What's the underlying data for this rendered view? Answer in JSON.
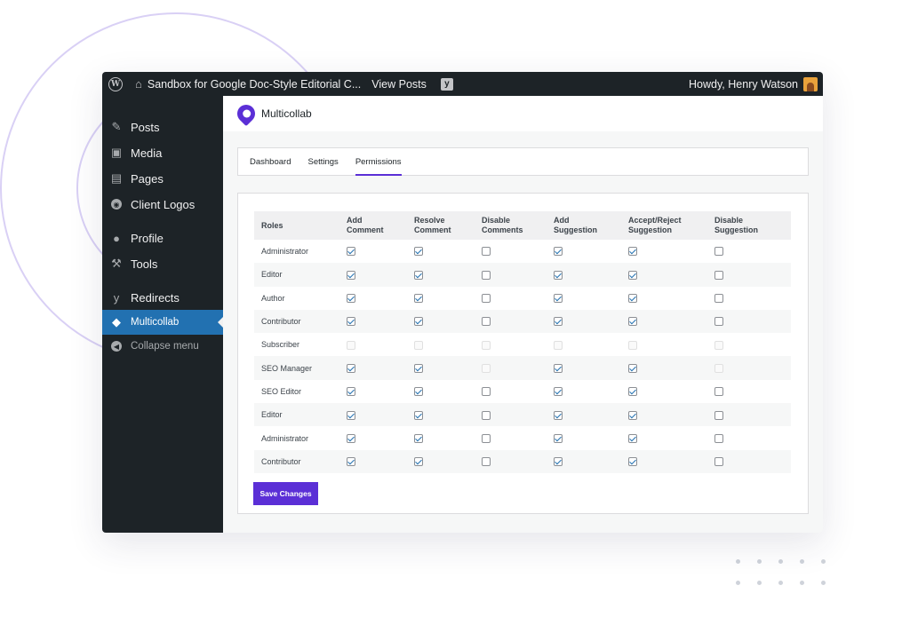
{
  "adminbar": {
    "site_title": "Sandbox for Google Doc-Style Editorial C...",
    "view_posts": "View Posts",
    "howdy": "Howdy, Henry Watson"
  },
  "sidebar": {
    "items": [
      {
        "label": "Posts",
        "icon": "pin-icon"
      },
      {
        "label": "Media",
        "icon": "media-icon"
      },
      {
        "label": "Pages",
        "icon": "pages-icon"
      },
      {
        "label": "Client Logos",
        "icon": "client-logos-icon"
      },
      {
        "label": "Profile",
        "icon": "profile-icon"
      },
      {
        "label": "Tools",
        "icon": "wrench-icon"
      },
      {
        "label": "Redirects",
        "icon": "yoast-icon"
      },
      {
        "label": "Multicollab",
        "icon": "multicollab-icon",
        "active": true
      },
      {
        "label": "Collapse menu",
        "icon": "collapse-icon"
      }
    ]
  },
  "plugin": {
    "name": "Multicollab"
  },
  "tabs": [
    {
      "label": "Dashboard",
      "active": false
    },
    {
      "label": "Settings",
      "active": false
    },
    {
      "label": "Permissions",
      "active": true
    }
  ],
  "permissions": {
    "columns": [
      "Roles",
      "Add Comment",
      "Resolve Comment",
      "Disable Comments",
      "Add Suggestion",
      "Accept/Reject Suggestion",
      "Disable Suggestion"
    ],
    "column_lines": [
      [
        "Roles"
      ],
      [
        "Add",
        "Comment"
      ],
      [
        "Resolve",
        "Comment"
      ],
      [
        "Disable",
        "Comments"
      ],
      [
        "Add",
        "Suggestion"
      ],
      [
        "Accept/Reject",
        "Suggestion"
      ],
      [
        "Disable",
        "Suggestion"
      ]
    ],
    "rows": [
      {
        "role": "Administrator",
        "states": [
          "checked",
          "checked",
          "unchecked",
          "checked",
          "checked",
          "unchecked"
        ]
      },
      {
        "role": "Editor",
        "states": [
          "checked",
          "checked",
          "unchecked",
          "checked",
          "checked",
          "unchecked"
        ]
      },
      {
        "role": "Author",
        "states": [
          "checked",
          "checked",
          "unchecked",
          "checked",
          "checked",
          "unchecked"
        ]
      },
      {
        "role": "Contributor",
        "states": [
          "checked",
          "checked",
          "unchecked",
          "checked",
          "checked",
          "unchecked"
        ]
      },
      {
        "role": "Subscriber",
        "states": [
          "disabled",
          "disabled",
          "disabled",
          "disabled",
          "disabled",
          "disabled"
        ]
      },
      {
        "role": "SEO Manager",
        "states": [
          "checked",
          "checked",
          "disabled",
          "checked",
          "checked",
          "disabled"
        ]
      },
      {
        "role": "SEO Editor",
        "states": [
          "checked",
          "checked",
          "unchecked",
          "checked",
          "checked",
          "unchecked"
        ]
      },
      {
        "role": "Editor",
        "states": [
          "checked",
          "checked",
          "unchecked",
          "checked",
          "checked",
          "unchecked"
        ]
      },
      {
        "role": "Administrator",
        "states": [
          "checked",
          "checked",
          "unchecked",
          "checked",
          "checked",
          "unchecked"
        ]
      },
      {
        "role": "Contributor",
        "states": [
          "checked",
          "checked",
          "unchecked",
          "checked",
          "checked",
          "unchecked"
        ]
      }
    ]
  },
  "save_button": "Save Changes",
  "colors": {
    "accent": "#5b2fd6",
    "wp_blue": "#2271b1",
    "admin_dark": "#1d2327"
  }
}
